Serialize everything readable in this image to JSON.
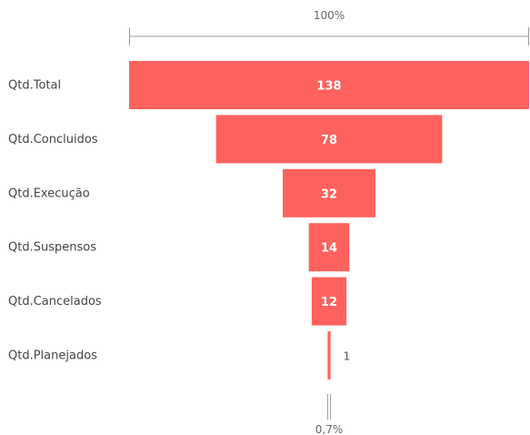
{
  "chart_data": {
    "type": "funnel",
    "categories": [
      "Qtd.Total",
      "Qtd.Concluidos",
      "Qtd.Execução",
      "Qtd.Suspensos",
      "Qtd.Cancelados",
      "Qtd.Planejados"
    ],
    "values": [
      138,
      78,
      32,
      14,
      12,
      1
    ],
    "data_labels": [
      "138",
      "78",
      "32",
      "14",
      "12",
      "1"
    ],
    "top_percent_label": "100%",
    "bottom_percent_label": "0,7%",
    "bar_color": "#FD625E"
  }
}
